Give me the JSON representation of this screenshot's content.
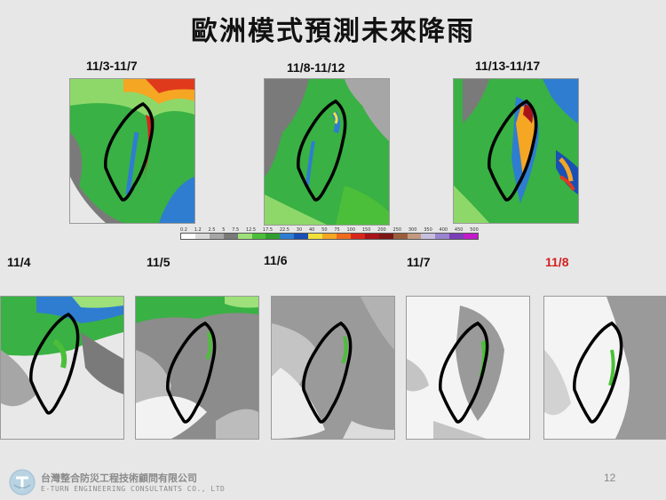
{
  "title": "歐洲模式預測未來降雨",
  "top_panels": [
    {
      "label": "11/3-11/7"
    },
    {
      "label": "11/8-11/12"
    },
    {
      "label": "11/13-11/17"
    }
  ],
  "bottom_panels": [
    {
      "label": "11/4"
    },
    {
      "label": "11/5"
    },
    {
      "label": "11/6"
    },
    {
      "label": "11/7"
    },
    {
      "label": "11/8",
      "highlight_color": "#d42020"
    }
  ],
  "color_scale": {
    "ticks": [
      "0.2",
      "1.2",
      "2.5",
      "5",
      "7.5",
      "12.5",
      "17.5",
      "22.5",
      "30",
      "40",
      "50",
      "75",
      "100",
      "150",
      "200",
      "250",
      "300",
      "350",
      "400",
      "450",
      "500"
    ],
    "colors": [
      "#ffffff",
      "#d9d9d9",
      "#a6a6a6",
      "#7a7a7a",
      "#9ee07a",
      "#4cbf3a",
      "#2f9e2f",
      "#2e7dd1",
      "#1a4fb5",
      "#f2e13a",
      "#f5a623",
      "#ef6b1e",
      "#d8261c",
      "#a8131a",
      "#7d1515",
      "#9a5e3c",
      "#c29a80",
      "#c7bfe0",
      "#9a84cf",
      "#7a3fb8",
      "#c21cc9"
    ]
  },
  "footer": {
    "company": "台灣整合防災工程技術顧問有限公司",
    "company_en": "E-TURN ENGINEERING CONSULTANTS CO., LTD",
    "page_number": "12"
  }
}
